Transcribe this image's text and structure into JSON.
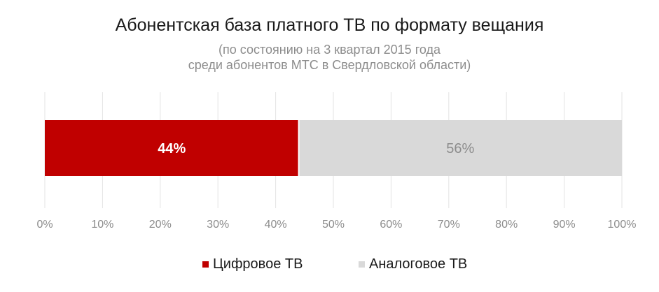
{
  "chart_data": {
    "type": "bar",
    "orientation": "horizontal-stacked-100",
    "title": "Абонентская база платного ТВ по формату вещания",
    "subtitle_line1": "(по состоянию на 3 квартал 2015 года",
    "subtitle_line2": "среди абонентов МТС в Свердловской области)",
    "series": [
      {
        "name": "Цифровое ТВ",
        "value": 44,
        "label": "44%",
        "color": "#c00000",
        "label_color": "#ffffff"
      },
      {
        "name": "Аналоговое ТВ",
        "value": 56,
        "label": "56%",
        "color": "#d9d9d9",
        "label_color": "#8c8c8c"
      }
    ],
    "xlim": [
      0,
      100
    ],
    "ticks": [
      "0%",
      "10%",
      "20%",
      "30%",
      "40%",
      "50%",
      "60%",
      "70%",
      "80%",
      "90%",
      "100%"
    ],
    "grid": true,
    "legend_position": "bottom"
  }
}
